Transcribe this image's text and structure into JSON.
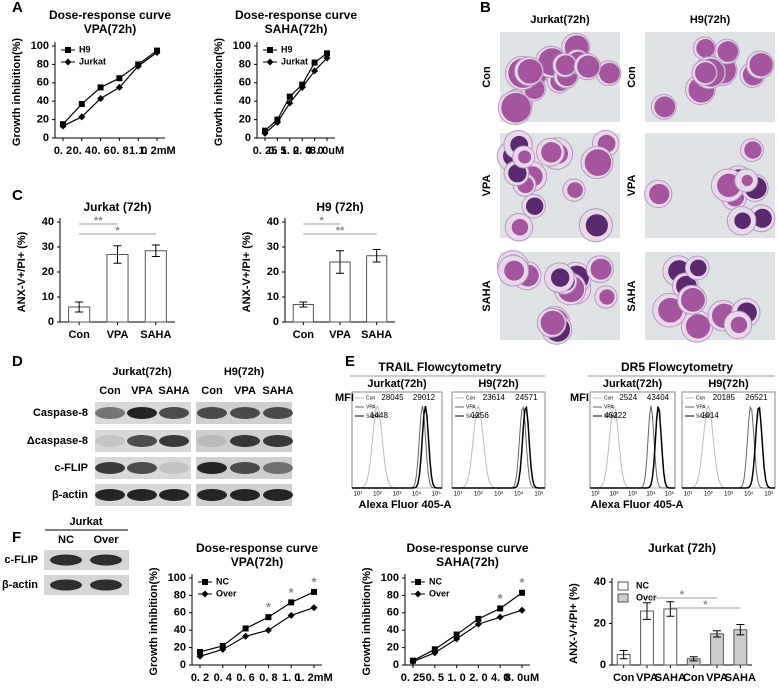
{
  "panel_labels": [
    "A",
    "B",
    "C",
    "D",
    "E",
    "F"
  ],
  "chart_data": [
    {
      "type": "line",
      "title": "Dose-response curve",
      "subtitle": "VPA(72h)",
      "ylabel": "Growth inhibition(%)",
      "categories": [
        "0. 2",
        "0. 4",
        "0. 6",
        "0. 8",
        "1. 0",
        "1. 2mM"
      ],
      "series": [
        {
          "name": "H9",
          "color": "#000000",
          "marker": "square",
          "values": [
            15,
            37,
            55,
            65,
            80,
            95
          ]
        },
        {
          "name": "Jurkat",
          "color": "#000000",
          "marker": "diamond",
          "values": [
            13,
            23,
            43,
            55,
            78,
            93
          ]
        }
      ],
      "ylim": [
        0,
        100
      ],
      "yticks": [
        0,
        20,
        40,
        60,
        80,
        100
      ],
      "legend": "upper left"
    },
    {
      "type": "line",
      "title": "Dose-response curve",
      "subtitle": "SAHA(72h)",
      "ylabel": "Growth inhibition(%)",
      "categories": [
        "0. 25",
        "0. 5",
        "1. 0",
        "2. 0",
        "4. 0",
        "8. 0uM"
      ],
      "series": [
        {
          "name": "H9",
          "color": "#000000",
          "marker": "square",
          "values": [
            8,
            20,
            45,
            58,
            82,
            92
          ]
        },
        {
          "name": "Jurkat",
          "color": "#000000",
          "marker": "diamond",
          "values": [
            5,
            17,
            38,
            55,
            73,
            87
          ]
        }
      ],
      "ylim": [
        0,
        100
      ],
      "yticks": [
        0,
        20,
        40,
        60,
        80,
        100
      ],
      "legend": "upper left"
    },
    {
      "type": "bar",
      "title": "Jurkat (72h)",
      "ylabel": "ANX-V+/PI+ (%)",
      "categories": [
        "Con",
        "VPA",
        "SAHA"
      ],
      "series": [
        {
          "color": "#ffffff",
          "values": [
            6,
            27,
            28.5
          ],
          "errors": [
            2,
            3.5,
            2.3
          ]
        }
      ],
      "ylim": [
        0,
        40
      ],
      "yticks": [
        0,
        10,
        20,
        30,
        40
      ],
      "annotations": [
        {
          "text": "**",
          "between": [
            0,
            1
          ]
        },
        {
          "text": "*",
          "between": [
            0,
            2
          ]
        }
      ]
    },
    {
      "type": "bar",
      "title": "H9 (72h)",
      "ylabel": "ANX-V+/PI+ (%)",
      "categories": [
        "Con",
        "VPA",
        "SAHA"
      ],
      "series": [
        {
          "color": "#ffffff",
          "values": [
            7,
            24,
            26.5
          ],
          "errors": [
            1,
            4.5,
            2.5
          ]
        }
      ],
      "ylim": [
        0,
        40
      ],
      "yticks": [
        0,
        10,
        20,
        30,
        40
      ],
      "annotations": [
        {
          "text": "*",
          "between": [
            0,
            1
          ]
        },
        {
          "text": "**",
          "between": [
            0,
            2
          ]
        }
      ]
    },
    {
      "type": "line",
      "title": "Dose-response curve",
      "subtitle": "VPA(72h)",
      "ylabel": "Growth inhibition(%)",
      "categories": [
        "0. 2",
        "0. 4",
        "0. 6",
        "0. 8",
        "1. 0",
        "1. 2mM"
      ],
      "series": [
        {
          "name": "NC",
          "color": "#000000",
          "marker": "square",
          "values": [
            15,
            22,
            42,
            55,
            72,
            84
          ]
        },
        {
          "name": "Over",
          "color": "#000000",
          "marker": "diamond",
          "values": [
            10,
            18,
            33,
            40,
            57,
            66
          ]
        }
      ],
      "ylim": [
        0,
        100
      ],
      "yticks": [
        0,
        20,
        40,
        60,
        80,
        100
      ],
      "legend": "upper left",
      "annotations": [
        {
          "text": "*",
          "category": "0. 8"
        },
        {
          "text": "*",
          "category": "1. 0"
        },
        {
          "text": "*",
          "category": "1. 2mM"
        }
      ]
    },
    {
      "type": "line",
      "title": "Dose-response curve",
      "subtitle": "SAHA(72h)",
      "ylabel": "Growth inhibition(%)",
      "categories": [
        "0. 25",
        "0. 5",
        "1. 0",
        "2. 0",
        "4. 0",
        "8. 0uM"
      ],
      "series": [
        {
          "name": "NC",
          "color": "#000000",
          "marker": "square",
          "values": [
            5,
            18,
            35,
            53,
            65,
            83
          ]
        },
        {
          "name": "Over",
          "color": "#000000",
          "marker": "diamond",
          "values": [
            4,
            14,
            30,
            47,
            55,
            63
          ]
        }
      ],
      "ylim": [
        0,
        100
      ],
      "yticks": [
        0,
        20,
        40,
        60,
        80,
        100
      ],
      "legend": "upper left",
      "annotations": [
        {
          "text": "*",
          "category": "4. 0"
        },
        {
          "text": "*",
          "category": "8. 0uM"
        }
      ]
    },
    {
      "type": "bar",
      "title": "Jurkat (72h)",
      "ylabel": "ANX-V+/PI+ (%)",
      "categories": [
        "Con",
        "VPA",
        "SAHA",
        "Con",
        "VPA",
        "SAHA"
      ],
      "series": [
        {
          "name": "NC",
          "color": "#ffffff",
          "values": [
            5,
            26,
            27,
            null,
            null,
            null
          ],
          "errors": [
            2,
            4,
            3.5,
            null,
            null,
            null
          ]
        },
        {
          "name": "Over",
          "color": "#cccccc",
          "values": [
            null,
            null,
            null,
            3,
            15,
            17
          ],
          "errors": [
            null,
            null,
            null,
            1,
            1.5,
            2.5
          ]
        }
      ],
      "ylim": [
        0,
        40
      ],
      "yticks": [
        0,
        20,
        40
      ],
      "legend": "upper left",
      "annotations": [
        {
          "text": "*",
          "between": [
            1,
            4
          ]
        },
        {
          "text": "*",
          "between": [
            2,
            5
          ]
        }
      ]
    }
  ],
  "panel_b": {
    "columns": [
      "Jurkat(72h)",
      "H9(72h)"
    ],
    "rows": [
      "Con",
      "VPA",
      "SAHA"
    ]
  },
  "panel_d": {
    "groups": [
      "Jurkat(72h)",
      "H9(72h)"
    ],
    "lanes": [
      "Con",
      "VPA",
      "SAHA",
      "Con",
      "VPA",
      "SAHA"
    ],
    "proteins": [
      "Caspase-8",
      "Δcaspase-8",
      "c-FLIP",
      "β-actin"
    ]
  },
  "panel_e": {
    "titles": [
      "TRAIL Flowcytometry",
      "DR5 Flowcytometry"
    ],
    "mfi": "MFI",
    "xlabel": "Alexa Fluor 405-A",
    "xticks": [
      "10¹",
      "10²",
      "10³",
      "10⁴",
      "10⁵"
    ],
    "legend": [
      "Con",
      "VPA",
      "SAHA"
    ],
    "plots": [
      {
        "title": "Jurkat(72h)",
        "numbers": [
          "28045",
          "29012",
          "1448"
        ]
      },
      {
        "title": "H9(72h)",
        "numbers": [
          "23614",
          "24571",
          "1256"
        ]
      },
      {
        "title": "Jurkat(72h)",
        "numbers": [
          "2524",
          "43404",
          "45222"
        ]
      },
      {
        "title": "H9(72h)",
        "numbers": [
          "20185",
          "26521",
          "1014"
        ]
      }
    ]
  },
  "panel_f": {
    "cell": "Jurkat",
    "lanes": [
      "NC",
      "Over"
    ],
    "proteins": [
      "c-FLIP",
      "β-actin"
    ]
  }
}
